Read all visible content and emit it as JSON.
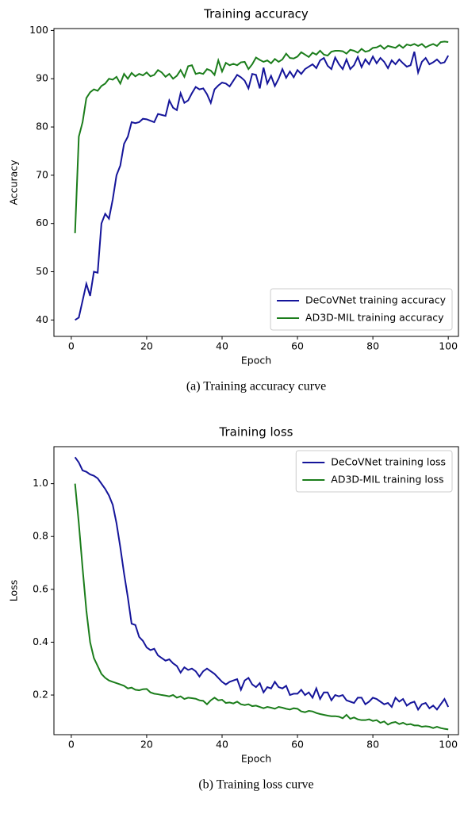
{
  "chart_data": [
    {
      "type": "line",
      "title": "Training accuracy",
      "xlabel": "Epoch",
      "ylabel": "Accuracy",
      "caption": "(a) Training accuracy curve",
      "x": [
        1,
        2,
        3,
        4,
        5,
        6,
        7,
        8,
        9,
        10,
        11,
        12,
        13,
        14,
        15,
        16,
        17,
        18,
        19,
        20,
        21,
        22,
        23,
        24,
        25,
        26,
        27,
        28,
        29,
        30,
        31,
        32,
        33,
        34,
        35,
        36,
        37,
        38,
        39,
        40,
        41,
        42,
        43,
        44,
        45,
        46,
        47,
        48,
        49,
        50,
        51,
        52,
        53,
        54,
        55,
        56,
        57,
        58,
        59,
        60,
        61,
        62,
        63,
        64,
        65,
        66,
        67,
        68,
        69,
        70,
        71,
        72,
        73,
        74,
        75,
        76,
        77,
        78,
        79,
        80,
        81,
        82,
        83,
        84,
        85,
        86,
        87,
        88,
        89,
        90,
        91,
        92,
        93,
        94,
        95,
        96,
        97,
        98,
        99,
        100
      ],
      "series": [
        {
          "name": "DeCoVNet training accuracy",
          "color": "#15159a",
          "values": [
            40,
            40.5,
            44,
            47.5,
            45,
            50,
            49.8,
            60,
            62,
            61,
            65,
            70,
            72,
            76.5,
            78,
            81,
            80.8,
            81,
            81.7,
            81.6,
            81.3,
            81,
            82.7,
            82.5,
            82.3,
            85.5,
            84,
            83.5,
            87,
            85,
            85.5,
            87,
            88.3,
            87.8,
            88,
            86.8,
            85,
            87.8,
            88.6,
            89.2,
            89,
            88.4,
            89.6,
            90.8,
            90.3,
            89.6,
            88,
            91,
            90.8,
            88,
            92.3,
            89,
            90.6,
            88.5,
            90,
            92,
            90.2,
            91.5,
            90.3,
            91.8,
            91,
            92,
            92.5,
            93,
            92.2,
            93.8,
            94.3,
            92.7,
            92,
            94.4,
            93,
            92,
            94,
            92,
            92.8,
            94.5,
            92.4,
            94,
            93,
            94.6,
            93.2,
            94.3,
            93.5,
            92.2,
            93.8,
            93,
            94,
            93.2,
            92.5,
            92.8,
            95.6,
            91.3,
            93.5,
            94.3,
            93,
            93.4,
            94,
            93.2,
            93.4,
            94.8
          ]
        },
        {
          "name": "AD3D-MIL training accuracy",
          "color": "#1b7d1b",
          "values": [
            58,
            78,
            81,
            86,
            87.2,
            87.8,
            87.5,
            88.5,
            89,
            90,
            89.8,
            90.4,
            89,
            91,
            90,
            91.2,
            90.5,
            91,
            90.7,
            91.3,
            90.5,
            90.8,
            91.8,
            91.3,
            90.4,
            91,
            90,
            90.6,
            91.8,
            90.4,
            92.6,
            92.8,
            91,
            91.2,
            91,
            92,
            91.7,
            90.8,
            93.8,
            91.5,
            93.3,
            92.8,
            93.1,
            92.8,
            93.4,
            93.5,
            92,
            93,
            94.4,
            93.9,
            93.5,
            93.8,
            93.2,
            94.1,
            93.5,
            94,
            95.2,
            94.3,
            94.2,
            94.6,
            95.5,
            95,
            94.5,
            95.4,
            95,
            95.8,
            95,
            94.8,
            95.6,
            95.8,
            95.8,
            95.7,
            95.2,
            96,
            95.8,
            95.4,
            96.2,
            95.6,
            95.8,
            96.4,
            96.5,
            96.9,
            96.2,
            96.8,
            96.6,
            96.4,
            97,
            96.4,
            97.1,
            96.9,
            97.2,
            96.8,
            97.2,
            96.5,
            96.9,
            97.2,
            96.8,
            97.6,
            97.7,
            97.6
          ]
        }
      ],
      "xlim": [
        -4.6,
        102.7
      ],
      "xticks": [
        0,
        20,
        40,
        60,
        80,
        100
      ],
      "ylim": [
        36.6,
        100.4
      ],
      "yticks": [
        40,
        50,
        60,
        70,
        80,
        90,
        100
      ],
      "legend": "lower right"
    },
    {
      "type": "line",
      "title": "Training loss",
      "xlabel": "Epoch",
      "ylabel": "Loss",
      "caption": "(b) Training loss curve",
      "x": [
        1,
        2,
        3,
        4,
        5,
        6,
        7,
        8,
        9,
        10,
        11,
        12,
        13,
        14,
        15,
        16,
        17,
        18,
        19,
        20,
        21,
        22,
        23,
        24,
        25,
        26,
        27,
        28,
        29,
        30,
        31,
        32,
        33,
        34,
        35,
        36,
        37,
        38,
        39,
        40,
        41,
        42,
        43,
        44,
        45,
        46,
        47,
        48,
        49,
        50,
        51,
        52,
        53,
        54,
        55,
        56,
        57,
        58,
        59,
        60,
        61,
        62,
        63,
        64,
        65,
        66,
        67,
        68,
        69,
        70,
        71,
        72,
        73,
        74,
        75,
        76,
        77,
        78,
        79,
        80,
        81,
        82,
        83,
        84,
        85,
        86,
        87,
        88,
        89,
        90,
        91,
        92,
        93,
        94,
        95,
        96,
        97,
        98,
        99,
        100
      ],
      "series": [
        {
          "name": "DeCoVNet training loss",
          "color": "#15159a",
          "values": [
            1.1,
            1.08,
            1.05,
            1.045,
            1.035,
            1.03,
            1.02,
            1.0,
            0.98,
            0.955,
            0.92,
            0.85,
            0.76,
            0.66,
            0.57,
            0.47,
            0.465,
            0.42,
            0.405,
            0.38,
            0.37,
            0.375,
            0.35,
            0.34,
            0.33,
            0.335,
            0.32,
            0.31,
            0.285,
            0.305,
            0.295,
            0.3,
            0.29,
            0.27,
            0.29,
            0.3,
            0.29,
            0.28,
            0.265,
            0.25,
            0.24,
            0.25,
            0.255,
            0.26,
            0.22,
            0.255,
            0.265,
            0.24,
            0.23,
            0.245,
            0.21,
            0.23,
            0.225,
            0.25,
            0.23,
            0.225,
            0.235,
            0.2,
            0.205,
            0.205,
            0.22,
            0.2,
            0.21,
            0.19,
            0.225,
            0.185,
            0.21,
            0.21,
            0.18,
            0.2,
            0.195,
            0.2,
            0.18,
            0.175,
            0.17,
            0.19,
            0.19,
            0.165,
            0.175,
            0.19,
            0.185,
            0.175,
            0.165,
            0.17,
            0.155,
            0.19,
            0.175,
            0.185,
            0.16,
            0.17,
            0.175,
            0.145,
            0.165,
            0.17,
            0.15,
            0.16,
            0.145,
            0.165,
            0.185,
            0.155
          ]
        },
        {
          "name": "AD3D-MIL training loss",
          "color": "#1b7d1b",
          "values": [
            1.0,
            0.85,
            0.68,
            0.52,
            0.4,
            0.34,
            0.31,
            0.28,
            0.265,
            0.255,
            0.25,
            0.245,
            0.24,
            0.235,
            0.225,
            0.228,
            0.22,
            0.218,
            0.222,
            0.223,
            0.21,
            0.205,
            0.203,
            0.2,
            0.198,
            0.195,
            0.2,
            0.19,
            0.195,
            0.185,
            0.19,
            0.188,
            0.186,
            0.18,
            0.178,
            0.165,
            0.18,
            0.19,
            0.18,
            0.182,
            0.17,
            0.172,
            0.168,
            0.175,
            0.165,
            0.162,
            0.165,
            0.158,
            0.16,
            0.155,
            0.15,
            0.155,
            0.152,
            0.148,
            0.155,
            0.152,
            0.148,
            0.145,
            0.15,
            0.148,
            0.138,
            0.135,
            0.14,
            0.138,
            0.132,
            0.128,
            0.125,
            0.122,
            0.12,
            0.12,
            0.118,
            0.112,
            0.125,
            0.11,
            0.115,
            0.108,
            0.105,
            0.105,
            0.108,
            0.102,
            0.105,
            0.095,
            0.1,
            0.088,
            0.095,
            0.098,
            0.09,
            0.095,
            0.088,
            0.09,
            0.085,
            0.085,
            0.08,
            0.082,
            0.08,
            0.075,
            0.08,
            0.075,
            0.072,
            0.07
          ]
        }
      ],
      "xlim": [
        -4.6,
        102.7
      ],
      "xticks": [
        0,
        20,
        40,
        60,
        80,
        100
      ],
      "ylim": [
        0.05,
        1.14
      ],
      "yticks": [
        0.2,
        0.4,
        0.6,
        0.8,
        {
          "value": 1,
          "label": "1.0"
        }
      ],
      "legend": "upper right"
    }
  ]
}
